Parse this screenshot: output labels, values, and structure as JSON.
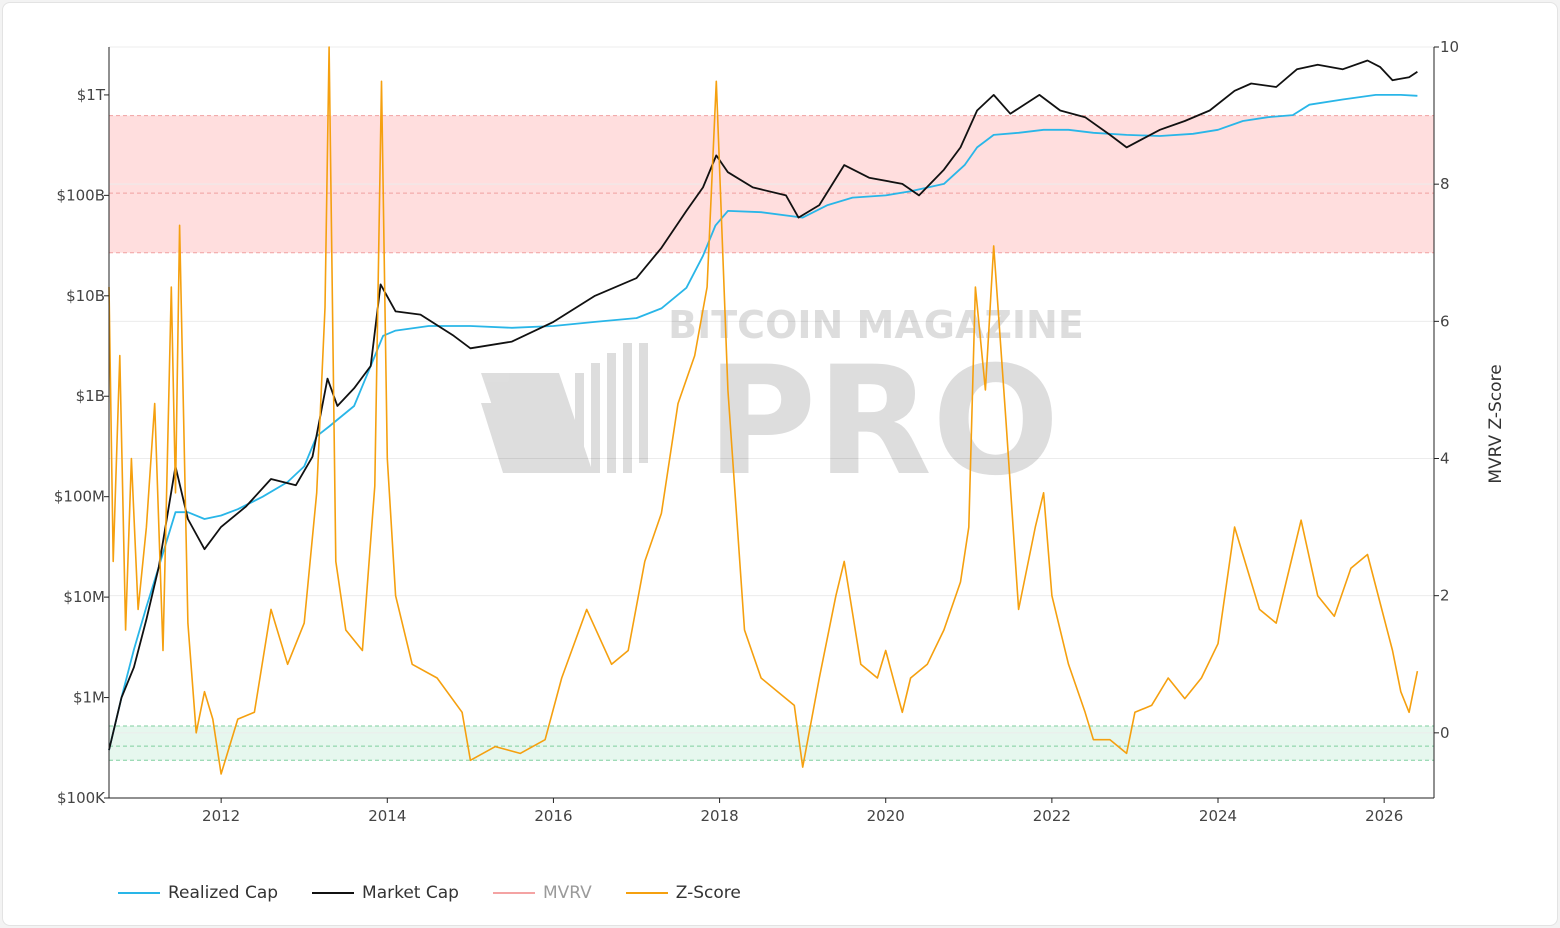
{
  "chart_data": {
    "type": "line",
    "y2label": "MVRV Z-Score",
    "x_ticks": [
      "2012",
      "2014",
      "2016",
      "2018",
      "2020",
      "2022",
      "2024",
      "2026"
    ],
    "x_range": [
      2010.65,
      2026.6
    ],
    "y_left_scale": "log",
    "y_left_range": [
      100000,
      3000000000000
    ],
    "y_left_ticks": [
      {
        "value": 1000000000000,
        "label": "$1T"
      },
      {
        "value": 100000000000,
        "label": "$100B"
      },
      {
        "value": 10000000000,
        "label": "$10B"
      },
      {
        "value": 1000000000,
        "label": "$1B"
      },
      {
        "value": 100000000,
        "label": "$100M"
      },
      {
        "value": 10000000,
        "label": "$10M"
      },
      {
        "value": 1000000,
        "label": "$1M"
      },
      {
        "value": 100000,
        "label": "$100K"
      }
    ],
    "y_right_range": [
      -0.95,
      10
    ],
    "y_right_ticks": [
      "0",
      "2",
      "4",
      "6",
      "8",
      "10"
    ],
    "bands": [
      {
        "axis": "right",
        "from": 7.0,
        "to": 9.0,
        "color": "#ffdede"
      },
      {
        "axis": "right",
        "from": -0.4,
        "to": 0.1,
        "color": "#e6f7ee"
      }
    ],
    "watermark": {
      "line1": "BITCOIN MAGAZINE",
      "line2": "PRO"
    },
    "series": [
      {
        "name": "Realized Cap",
        "color": "#29b6e8",
        "axis": "left",
        "x": [
          2010.65,
          2010.8,
          2010.95,
          2011.1,
          2011.25,
          2011.45,
          2011.6,
          2011.8,
          2012.0,
          2012.2,
          2012.5,
          2012.8,
          2013.0,
          2013.15,
          2013.3,
          2013.6,
          2013.8,
          2013.95,
          2014.1,
          2014.5,
          2015.0,
          2015.5,
          2016.0,
          2016.5,
          2017.0,
          2017.3,
          2017.6,
          2017.8,
          2017.95,
          2018.1,
          2018.5,
          2019.0,
          2019.3,
          2019.6,
          2020.0,
          2020.3,
          2020.7,
          2020.95,
          2021.1,
          2021.3,
          2021.6,
          2021.9,
          2022.2,
          2022.5,
          2022.9,
          2023.3,
          2023.7,
          2024.0,
          2024.3,
          2024.6,
          2024.9,
          2025.1,
          2025.5,
          2025.9,
          2026.2,
          2026.4
        ],
        "values": [
          300000,
          1000000,
          3000000,
          8000000,
          20000000,
          70000000,
          70000000,
          60000000,
          65000000,
          75000000,
          100000000,
          140000000,
          200000000,
          400000000,
          500000000,
          800000000,
          2000000000,
          4000000000,
          4500000000,
          5000000000,
          5000000000,
          4800000000,
          5000000000,
          5500000000,
          6000000000,
          7500000000,
          12000000000,
          25000000000,
          50000000000,
          70000000000,
          68000000000,
          60000000000,
          80000000000,
          95000000000,
          100000000000,
          110000000000,
          130000000000,
          200000000000,
          300000000000,
          400000000000,
          420000000000,
          450000000000,
          450000000000,
          420000000000,
          400000000000,
          390000000000,
          410000000000,
          450000000000,
          550000000000,
          600000000000,
          630000000000,
          800000000000,
          900000000000,
          1000000000000,
          1000000000000,
          980000000000
        ]
      },
      {
        "name": "Market Cap",
        "color": "#111111",
        "axis": "left",
        "x": [
          2010.65,
          2010.8,
          2010.95,
          2011.1,
          2011.25,
          2011.45,
          2011.6,
          2011.8,
          2012.0,
          2012.3,
          2012.6,
          2012.9,
          2013.1,
          2013.28,
          2013.4,
          2013.6,
          2013.8,
          2013.92,
          2014.1,
          2014.4,
          2014.8,
          2015.0,
          2015.5,
          2016.0,
          2016.5,
          2017.0,
          2017.3,
          2017.6,
          2017.8,
          2017.96,
          2018.1,
          2018.4,
          2018.8,
          2018.95,
          2019.2,
          2019.5,
          2019.8,
          2020.2,
          2020.4,
          2020.7,
          2020.9,
          2021.1,
          2021.3,
          2021.5,
          2021.85,
          2022.1,
          2022.4,
          2022.7,
          2022.9,
          2023.3,
          2023.6,
          2023.9,
          2024.2,
          2024.4,
          2024.7,
          2024.95,
          2025.2,
          2025.5,
          2025.8,
          2025.95,
          2026.1,
          2026.3,
          2026.4
        ],
        "values": [
          300000,
          1000000,
          2000000,
          6000000,
          20000000,
          200000000,
          60000000,
          30000000,
          50000000,
          80000000,
          150000000,
          130000000,
          250000000,
          1500000000,
          800000000,
          1200000000,
          2000000000,
          13000000000,
          7000000000,
          6500000000,
          4000000000,
          3000000000,
          3500000000,
          5500000000,
          10000000000,
          15000000000,
          30000000000,
          70000000000,
          120000000000,
          250000000000,
          170000000000,
          120000000000,
          100000000000,
          60000000000,
          80000000000,
          200000000000,
          150000000000,
          130000000000,
          100000000000,
          180000000000,
          300000000000,
          700000000000,
          1000000000000,
          650000000000,
          1000000000000,
          700000000000,
          600000000000,
          400000000000,
          300000000000,
          450000000000,
          550000000000,
          700000000000,
          1100000000000,
          1300000000000,
          1200000000000,
          1800000000000,
          2000000000000,
          1800000000000,
          2200000000000,
          1900000000000,
          1400000000000,
          1500000000000,
          1700000000000
        ]
      },
      {
        "name": "MVRV",
        "color": "#f4a3a3",
        "axis": "right",
        "x": [],
        "values": []
      },
      {
        "name": "Z-Score",
        "color": "#f5a00f",
        "axis": "right",
        "x": [
          2010.65,
          2010.7,
          2010.78,
          2010.85,
          2010.92,
          2011.0,
          2011.1,
          2011.2,
          2011.3,
          2011.4,
          2011.45,
          2011.5,
          2011.6,
          2011.7,
          2011.8,
          2011.9,
          2012.0,
          2012.2,
          2012.4,
          2012.6,
          2012.8,
          2013.0,
          2013.15,
          2013.25,
          2013.3,
          2013.38,
          2013.5,
          2013.7,
          2013.85,
          2013.93,
          2014.0,
          2014.1,
          2014.3,
          2014.6,
          2014.9,
          2015.0,
          2015.3,
          2015.6,
          2015.9,
          2016.1,
          2016.4,
          2016.7,
          2016.9,
          2017.1,
          2017.3,
          2017.5,
          2017.7,
          2017.85,
          2017.96,
          2018.1,
          2018.3,
          2018.5,
          2018.7,
          2018.9,
          2019.0,
          2019.2,
          2019.4,
          2019.5,
          2019.7,
          2019.9,
          2020.0,
          2020.2,
          2020.3,
          2020.5,
          2020.7,
          2020.9,
          2021.0,
          2021.08,
          2021.2,
          2021.3,
          2021.45,
          2021.6,
          2021.8,
          2021.9,
          2022.0,
          2022.2,
          2022.4,
          2022.5,
          2022.7,
          2022.9,
          2023.0,
          2023.2,
          2023.4,
          2023.6,
          2023.8,
          2024.0,
          2024.2,
          2024.4,
          2024.5,
          2024.7,
          2024.9,
          2025.0,
          2025.2,
          2025.4,
          2025.6,
          2025.8,
          2025.95,
          2026.1,
          2026.2,
          2026.3,
          2026.4
        ],
        "values": [
          6.5,
          2.5,
          5.5,
          1.5,
          4.0,
          1.8,
          3.0,
          4.8,
          1.2,
          6.5,
          3.5,
          7.4,
          1.6,
          0.0,
          0.6,
          0.2,
          -0.6,
          0.2,
          0.3,
          1.8,
          1.0,
          1.6,
          3.5,
          6.2,
          10.0,
          2.5,
          1.5,
          1.2,
          3.6,
          9.5,
          4.0,
          2.0,
          1.0,
          0.8,
          0.3,
          -0.4,
          -0.2,
          -0.3,
          -0.1,
          0.8,
          1.8,
          1.0,
          1.2,
          2.5,
          3.2,
          4.8,
          5.5,
          6.5,
          9.5,
          5.0,
          1.5,
          0.8,
          0.6,
          0.4,
          -0.5,
          0.8,
          2.0,
          2.5,
          1.0,
          0.8,
          1.2,
          0.3,
          0.8,
          1.0,
          1.5,
          2.2,
          3.0,
          6.5,
          5.0,
          7.1,
          4.5,
          1.8,
          3.0,
          3.5,
          2.0,
          1.0,
          0.3,
          -0.1,
          -0.1,
          -0.3,
          0.3,
          0.4,
          0.8,
          0.5,
          0.8,
          1.3,
          3.0,
          2.2,
          1.8,
          1.6,
          2.6,
          3.1,
          2.0,
          1.7,
          2.4,
          2.6,
          1.9,
          1.2,
          0.6,
          0.3,
          0.9
        ]
      }
    ]
  }
}
